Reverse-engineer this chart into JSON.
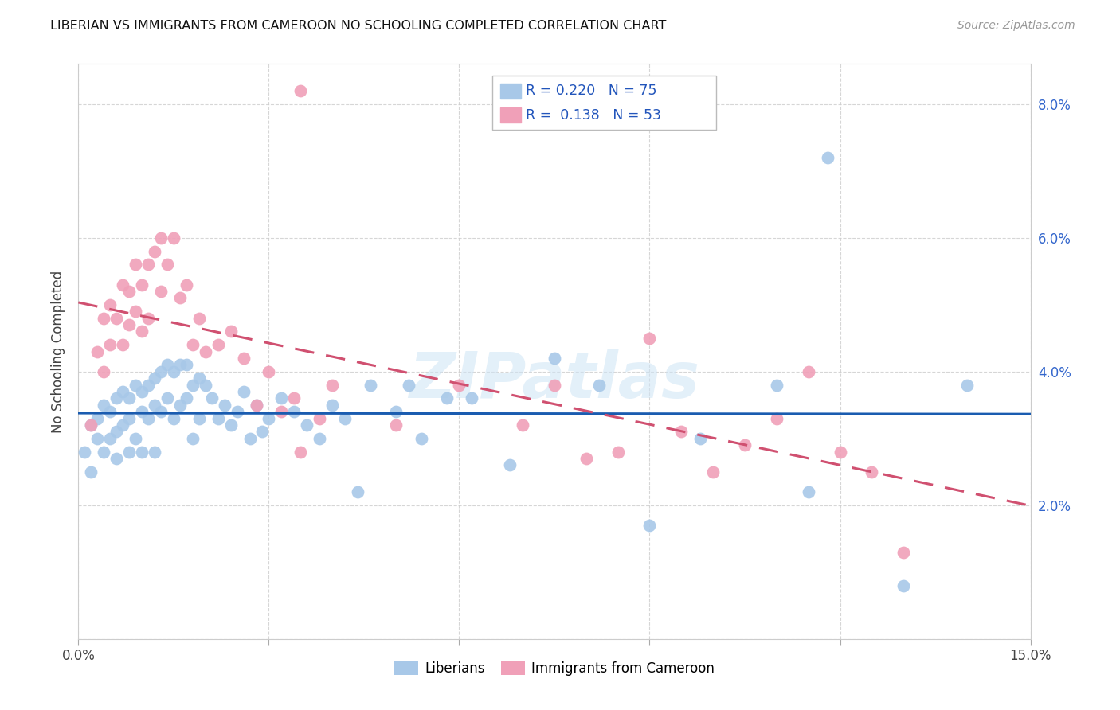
{
  "title": "LIBERIAN VS IMMIGRANTS FROM CAMEROON NO SCHOOLING COMPLETED CORRELATION CHART",
  "source": "Source: ZipAtlas.com",
  "ylabel": "No Schooling Completed",
  "xlim": [
    0.0,
    0.15
  ],
  "ylim": [
    0.0,
    0.086
  ],
  "ytick_vals": [
    0.0,
    0.02,
    0.04,
    0.06,
    0.08
  ],
  "ytick_labels": [
    "",
    "2.0%",
    "4.0%",
    "6.0%",
    "8.0%"
  ],
  "xtick_labels_show": [
    "0.0%",
    "15.0%"
  ],
  "liberian_R": 0.22,
  "liberian_N": 75,
  "cameroon_R": 0.138,
  "cameroon_N": 53,
  "liberian_color": "#a8c8e8",
  "cameroon_color": "#f0a0b8",
  "liberian_line_color": "#1a5cb0",
  "cameroon_line_color": "#d05070",
  "background_color": "#ffffff",
  "grid_color": "#cccccc",
  "watermark": "ZIPatlas",
  "liberian_x": [
    0.001,
    0.002,
    0.002,
    0.003,
    0.003,
    0.004,
    0.004,
    0.005,
    0.005,
    0.006,
    0.006,
    0.006,
    0.007,
    0.007,
    0.008,
    0.008,
    0.008,
    0.009,
    0.009,
    0.01,
    0.01,
    0.01,
    0.011,
    0.011,
    0.012,
    0.012,
    0.012,
    0.013,
    0.013,
    0.014,
    0.014,
    0.015,
    0.015,
    0.016,
    0.016,
    0.017,
    0.017,
    0.018,
    0.018,
    0.019,
    0.019,
    0.02,
    0.021,
    0.022,
    0.023,
    0.024,
    0.025,
    0.026,
    0.027,
    0.028,
    0.029,
    0.03,
    0.032,
    0.034,
    0.036,
    0.038,
    0.04,
    0.042,
    0.044,
    0.046,
    0.05,
    0.052,
    0.054,
    0.058,
    0.062,
    0.068,
    0.075,
    0.082,
    0.09,
    0.098,
    0.11,
    0.115,
    0.118,
    0.13,
    0.14
  ],
  "liberian_y": [
    0.028,
    0.032,
    0.025,
    0.03,
    0.033,
    0.035,
    0.028,
    0.034,
    0.03,
    0.036,
    0.031,
    0.027,
    0.037,
    0.032,
    0.036,
    0.033,
    0.028,
    0.038,
    0.03,
    0.037,
    0.034,
    0.028,
    0.038,
    0.033,
    0.039,
    0.035,
    0.028,
    0.04,
    0.034,
    0.041,
    0.036,
    0.04,
    0.033,
    0.041,
    0.035,
    0.041,
    0.036,
    0.038,
    0.03,
    0.039,
    0.033,
    0.038,
    0.036,
    0.033,
    0.035,
    0.032,
    0.034,
    0.037,
    0.03,
    0.035,
    0.031,
    0.033,
    0.036,
    0.034,
    0.032,
    0.03,
    0.035,
    0.033,
    0.022,
    0.038,
    0.034,
    0.038,
    0.03,
    0.036,
    0.036,
    0.026,
    0.042,
    0.038,
    0.017,
    0.03,
    0.038,
    0.022,
    0.072,
    0.008,
    0.038
  ],
  "cameroon_x": [
    0.002,
    0.003,
    0.004,
    0.004,
    0.005,
    0.005,
    0.006,
    0.007,
    0.007,
    0.008,
    0.008,
    0.009,
    0.009,
    0.01,
    0.01,
    0.011,
    0.011,
    0.012,
    0.013,
    0.013,
    0.014,
    0.015,
    0.016,
    0.017,
    0.018,
    0.019,
    0.02,
    0.022,
    0.024,
    0.026,
    0.028,
    0.03,
    0.032,
    0.034,
    0.035,
    0.038,
    0.04,
    0.035,
    0.05,
    0.06,
    0.07,
    0.075,
    0.08,
    0.085,
    0.09,
    0.095,
    0.1,
    0.105,
    0.11,
    0.115,
    0.12,
    0.125,
    0.13
  ],
  "cameroon_y": [
    0.032,
    0.043,
    0.048,
    0.04,
    0.05,
    0.044,
    0.048,
    0.053,
    0.044,
    0.052,
    0.047,
    0.056,
    0.049,
    0.053,
    0.046,
    0.056,
    0.048,
    0.058,
    0.06,
    0.052,
    0.056,
    0.06,
    0.051,
    0.053,
    0.044,
    0.048,
    0.043,
    0.044,
    0.046,
    0.042,
    0.035,
    0.04,
    0.034,
    0.036,
    0.082,
    0.033,
    0.038,
    0.028,
    0.032,
    0.038,
    0.032,
    0.038,
    0.027,
    0.028,
    0.045,
    0.031,
    0.025,
    0.029,
    0.033,
    0.04,
    0.028,
    0.025,
    0.013
  ]
}
